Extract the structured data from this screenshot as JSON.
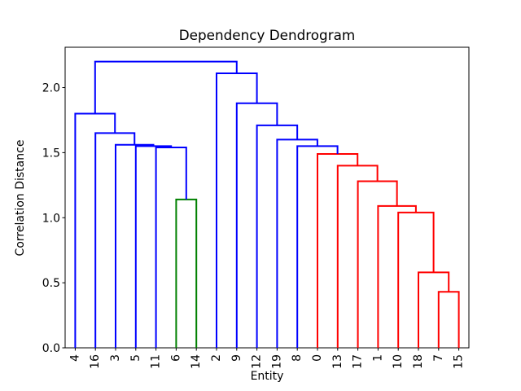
{
  "title": "Dependency Dendrogram",
  "xlabel": "Entity",
  "ylabel": "Correlation Distance",
  "chart_data": {
    "type": "dendrogram",
    "title": "Dependency Dendrogram",
    "xlabel": "Entity",
    "ylabel": "Correlation Distance",
    "leaf_order": [
      "4",
      "16",
      "3",
      "5",
      "11",
      "6",
      "14",
      "2",
      "9",
      "12",
      "19",
      "8",
      "0",
      "13",
      "17",
      "1",
      "10",
      "18",
      "7",
      "15"
    ],
    "yticks": [
      {
        "label": "0.0",
        "value": 0.0
      },
      {
        "label": "0.5",
        "value": 0.5
      },
      {
        "label": "1.0",
        "value": 1.0
      },
      {
        "label": "1.5",
        "value": 1.5
      },
      {
        "label": "2.0",
        "value": 2.0
      }
    ],
    "ylim": [
      0,
      2.31
    ],
    "grid": false,
    "legend": "none",
    "colors": {
      "blue": "#0000ff",
      "green": "#008000",
      "red": "#ff0000",
      "axis": "#000000"
    },
    "merges": [
      {
        "id": "g1",
        "left": "6",
        "right": "14",
        "height": 1.14,
        "color": "green"
      },
      {
        "id": "b1",
        "left": "11",
        "right": "g1",
        "height": 1.54,
        "color": "blue"
      },
      {
        "id": "b2",
        "left": "5",
        "right": "b1",
        "height": 1.55,
        "color": "blue"
      },
      {
        "id": "b3",
        "left": "3",
        "right": "b2",
        "height": 1.56,
        "color": "blue"
      },
      {
        "id": "b4",
        "left": "16",
        "right": "b3",
        "height": 1.65,
        "color": "blue"
      },
      {
        "id": "b5",
        "left": "4",
        "right": "b4",
        "height": 1.8,
        "color": "blue"
      },
      {
        "id": "r1",
        "left": "7",
        "right": "15",
        "height": 0.43,
        "color": "red"
      },
      {
        "id": "r2",
        "left": "18",
        "right": "r1",
        "height": 0.58,
        "color": "red"
      },
      {
        "id": "r3",
        "left": "10",
        "right": "r2",
        "height": 1.04,
        "color": "red"
      },
      {
        "id": "r4",
        "left": "1",
        "right": "r3",
        "height": 1.09,
        "color": "red"
      },
      {
        "id": "r5",
        "left": "17",
        "right": "r4",
        "height": 1.28,
        "color": "red"
      },
      {
        "id": "r6",
        "left": "13",
        "right": "r5",
        "height": 1.4,
        "color": "red"
      },
      {
        "id": "r7",
        "left": "0",
        "right": "r6",
        "height": 1.49,
        "color": "red"
      },
      {
        "id": "b6",
        "left": "8",
        "right": "r7",
        "height": 1.55,
        "color": "blue"
      },
      {
        "id": "b7",
        "left": "19",
        "right": "b6",
        "height": 1.6,
        "color": "blue"
      },
      {
        "id": "b8",
        "left": "12",
        "right": "b7",
        "height": 1.71,
        "color": "blue"
      },
      {
        "id": "b9",
        "left": "9",
        "right": "b8",
        "height": 1.88,
        "color": "blue"
      },
      {
        "id": "b10",
        "left": "2",
        "right": "b9",
        "height": 2.11,
        "color": "blue"
      },
      {
        "id": "root",
        "left": "b5",
        "right": "b10",
        "height": 2.2,
        "color": "blue"
      }
    ]
  }
}
